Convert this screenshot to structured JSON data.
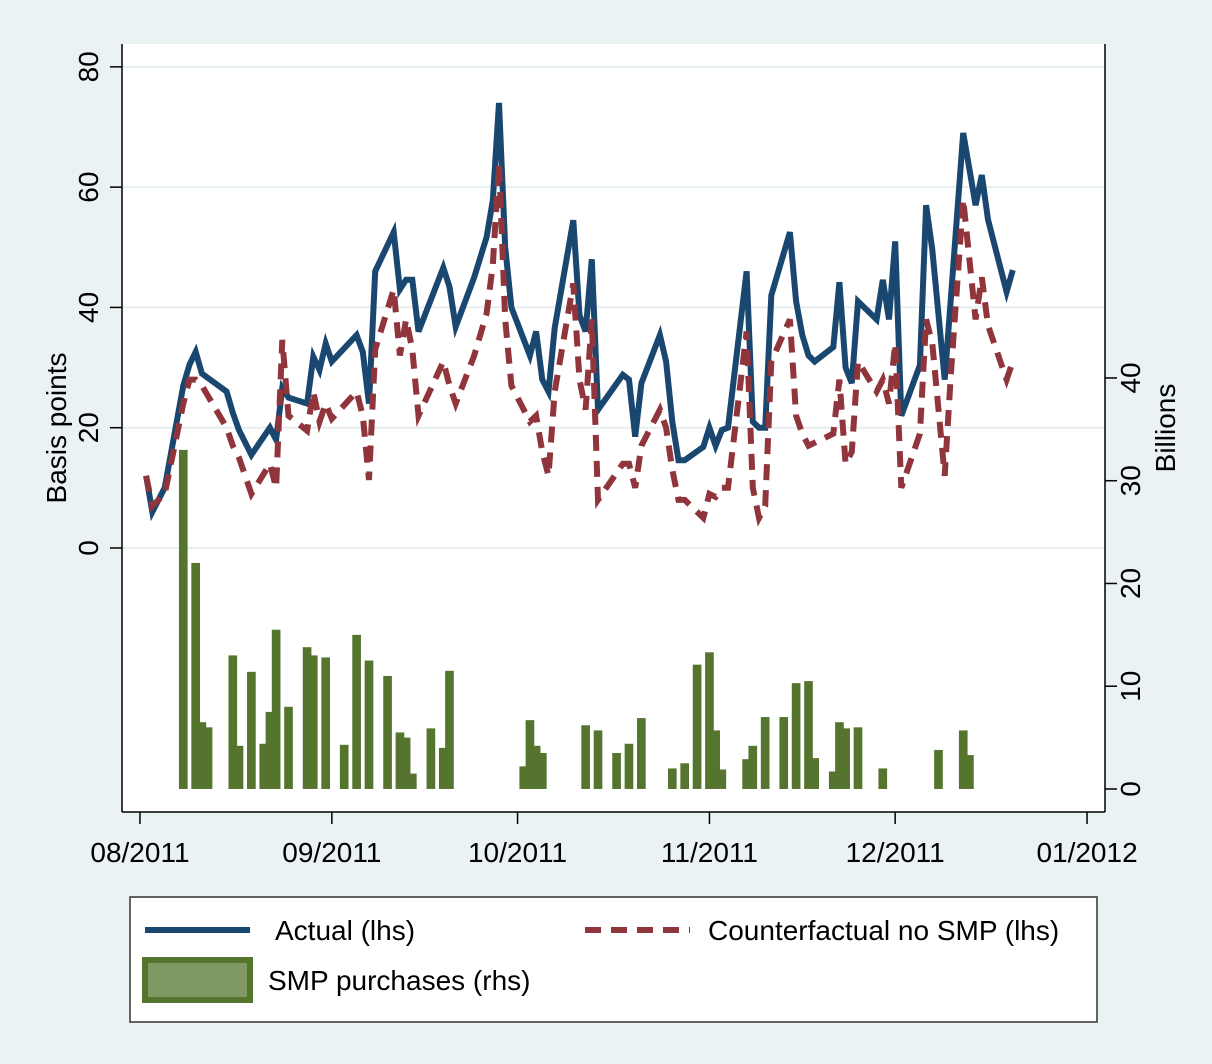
{
  "chart_data": {
    "type": "line",
    "y_title": "Basis points",
    "y2_title": "Billions",
    "x": [
      1,
      2,
      4,
      7,
      8,
      9,
      10,
      14,
      15,
      16,
      18,
      21,
      22,
      23,
      24,
      27,
      28,
      29,
      30,
      31,
      35,
      36,
      37,
      38,
      41,
      42,
      43,
      44,
      45,
      49,
      50,
      51,
      54,
      56,
      57,
      58,
      59,
      60,
      63,
      64,
      65,
      66,
      67,
      70,
      71,
      72,
      73,
      74,
      78,
      79,
      80,
      81,
      84,
      85,
      86,
      87,
      88,
      91,
      92,
      93,
      94,
      95,
      98,
      99,
      100,
      101,
      102,
      105,
      106,
      107,
      108,
      109,
      112,
      113,
      114,
      115,
      116,
      119,
      120,
      121,
      122,
      123,
      126,
      127,
      128,
      130,
      131,
      133,
      135,
      136,
      137,
      140,
      141
    ],
    "series": [
      {
        "name": "Actual (lhs)",
        "type": "line",
        "color": "#1a476f",
        "dash": false,
        "values": [
          12,
          6,
          10,
          27,
          30.5,
          32.6,
          29,
          26,
          22.5,
          19.6,
          15.5,
          20,
          18,
          26.6,
          25,
          24,
          31.8,
          29.6,
          34,
          31,
          35.4,
          32.6,
          24,
          46,
          52.5,
          43,
          44.6,
          44.6,
          36,
          46.6,
          43.4,
          36.8,
          45,
          51.7,
          57.8,
          74,
          50,
          40,
          32,
          36,
          28,
          26,
          36.6,
          54.5,
          38.7,
          36,
          48,
          23,
          28.8,
          28,
          18.5,
          27.4,
          35.4,
          31,
          21,
          14.6,
          14.6,
          16.8,
          20,
          17,
          19.6,
          20,
          46,
          21,
          20,
          20,
          42,
          52.5,
          41,
          35.4,
          32,
          31,
          33.4,
          44.2,
          30,
          27.4,
          41,
          38,
          44.6,
          38,
          51,
          22,
          30.4,
          57,
          49.6,
          28,
          41.6,
          69,
          57,
          62,
          54.6,
          42.6,
          46.2
        ]
      },
      {
        "name": "Counterfactual no SMP (lhs)",
        "type": "line",
        "color": "#90353b",
        "dash": true,
        "values": [
          12,
          7,
          9,
          24,
          28,
          28,
          27,
          20,
          17,
          15,
          9,
          14,
          10,
          34.6,
          22,
          19.5,
          26,
          21,
          24,
          21.5,
          26,
          22,
          11.3,
          33,
          43,
          32,
          38,
          33,
          22,
          31,
          27,
          24,
          32,
          39,
          47,
          64,
          38,
          27,
          21,
          22,
          16,
          12,
          26,
          44,
          28,
          23,
          38,
          8,
          14,
          14,
          10,
          17,
          23,
          20,
          13,
          8,
          8,
          5,
          9,
          8.5,
          10,
          10,
          36,
          10,
          5,
          7,
          31,
          38,
          22,
          19,
          17,
          17.5,
          19,
          28,
          14,
          16,
          31,
          26,
          28,
          24,
          34,
          10,
          19,
          38,
          34,
          12,
          29,
          58,
          38,
          45,
          37,
          28,
          31
        ]
      },
      {
        "name": "SMP purchases (rhs)",
        "type": "bar",
        "axis": "y2",
        "color": "#55752f",
        "x": [
          7,
          9,
          10,
          11,
          15,
          16,
          18,
          20,
          21,
          22,
          24,
          27,
          28,
          30,
          33,
          35,
          37,
          40,
          42,
          43,
          44,
          47,
          49,
          50,
          62,
          63,
          64,
          65,
          72,
          74,
          77,
          79,
          81,
          86,
          88,
          90,
          92,
          93,
          94,
          98,
          99,
          101,
          104,
          106,
          108,
          109,
          112,
          113,
          114,
          116,
          120,
          129,
          133,
          134
        ],
        "values": [
          33,
          22,
          6.5,
          6,
          13,
          4.2,
          11.4,
          4.4,
          7.5,
          15.5,
          8,
          13.8,
          13,
          12.8,
          4.3,
          15,
          12.5,
          11,
          5.5,
          5,
          1.5,
          5.9,
          4,
          11.5,
          2.2,
          6.7,
          4.2,
          3.5,
          6.2,
          5.7,
          3.5,
          4.4,
          6.9,
          2,
          2.5,
          12.1,
          13.3,
          5.7,
          1.9,
          2.9,
          4.2,
          7,
          7,
          10.3,
          10.5,
          3,
          1.7,
          6.5,
          5.9,
          6,
          2,
          3.8,
          5.7,
          3.3
        ]
      }
    ],
    "xlim": [
      -2.9,
      155.9
    ],
    "xticks": [
      {
        "value": 0,
        "label": "08/2011"
      },
      {
        "value": 31,
        "label": "09/2011"
      },
      {
        "value": 61,
        "label": "10/2011"
      },
      {
        "value": 92,
        "label": "11/2011"
      },
      {
        "value": 122,
        "label": "12/2011"
      },
      {
        "value": 153,
        "label": "01/2012"
      }
    ],
    "ylim": [
      -43.9,
      83.8
    ],
    "yticks": [
      0,
      20,
      40,
      60,
      80
    ],
    "y2lim": [
      -2.24,
      72.5
    ],
    "y2ticks": [
      0,
      10,
      20,
      30,
      40
    ],
    "grid": true
  }
}
